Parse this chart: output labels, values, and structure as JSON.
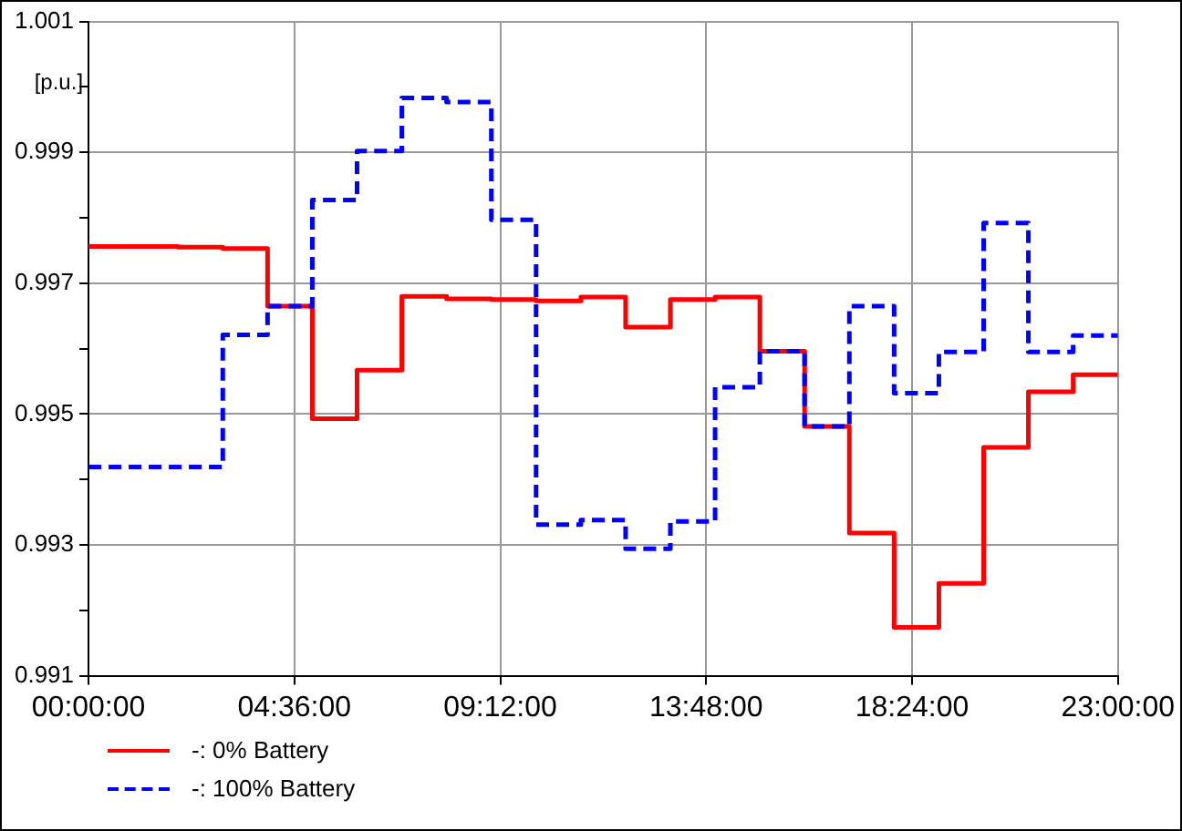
{
  "chart_data": {
    "type": "step",
    "ylabel": "[p.u.]",
    "xlim": [
      0,
      23
    ],
    "xticks": [
      {
        "value": 0,
        "label": "00:00:00"
      },
      {
        "value": 4.6,
        "label": "04:36:00"
      },
      {
        "value": 9.2,
        "label": "09:12:00"
      },
      {
        "value": 13.8,
        "label": "13:48:00"
      },
      {
        "value": 18.4,
        "label": "18:24:00"
      },
      {
        "value": 23,
        "label": "23:00:00"
      }
    ],
    "ylim": [
      0.991,
      1.001
    ],
    "yticks": [
      0.991,
      {
        "value": 0.992,
        "label": null
      },
      0.993,
      {
        "value": 0.994,
        "label": null
      },
      0.995,
      {
        "value": 0.996,
        "label": null
      },
      0.997,
      {
        "value": 0.998,
        "label": null
      },
      0.999,
      {
        "value": 1.0,
        "label": null
      },
      1.001
    ],
    "x": [
      0,
      1,
      2,
      3,
      4,
      5,
      6,
      7,
      8,
      9,
      10,
      11,
      12,
      13,
      14,
      15,
      16,
      17,
      18,
      19,
      20,
      21,
      22,
      23
    ],
    "series": [
      {
        "name": "-: 0% Battery",
        "color": "#ff0000",
        "line_style": "solid",
        "values": [
          0.99755,
          0.99756,
          0.99756,
          0.99755,
          0.99753,
          0.99665,
          0.99493,
          0.99567,
          0.9968,
          0.99676,
          0.99675,
          0.99673,
          0.99679,
          0.99633,
          0.99675,
          0.99679,
          0.99596,
          0.99481,
          0.99318,
          0.99174,
          0.99241,
          0.99449,
          0.99534,
          0.9956
        ]
      },
      {
        "name": "-: 100% Battery",
        "color": "#0000ff",
        "line_style": "dashed",
        "values": [
          0.99419,
          0.99419,
          0.99419,
          0.99419,
          0.99621,
          0.99665,
          0.99827,
          0.99902,
          0.99983,
          0.99977,
          0.99797,
          0.99331,
          0.99338,
          0.99294,
          0.99336,
          0.99541,
          0.99596,
          0.99481,
          0.99665,
          0.99532,
          0.99595,
          0.99792,
          0.99595,
          0.9962
        ]
      }
    ],
    "grid": true,
    "legend": "bottom left",
    "marker": "none"
  }
}
